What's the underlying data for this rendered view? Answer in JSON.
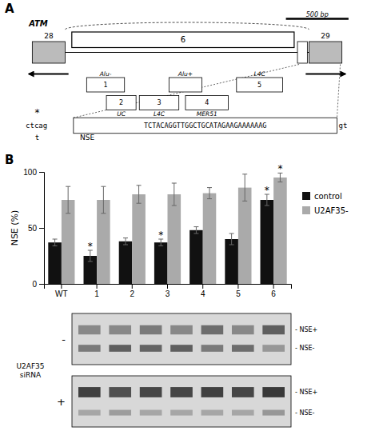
{
  "chart_data": [
    {
      "type": "diagram",
      "title": "A",
      "annotations": [
        "500 bp",
        "ATM",
        "28",
        "29",
        "6",
        "Alu-",
        "1",
        "UC",
        "2",
        "L4C",
        "3",
        "Alu+",
        "MER51",
        "4",
        "L4C",
        "5",
        "ctcag",
        "TCTACAGGTTGGCTGCATAGAAGAAAAAAG",
        "gt",
        "NSE",
        "*",
        "t"
      ]
    },
    {
      "type": "bar",
      "title": "B",
      "categories": [
        "WT",
        "1",
        "2",
        "3",
        "4",
        "5",
        "6"
      ],
      "series": [
        {
          "name": "control",
          "color": "#111111",
          "values": [
            37,
            25,
            38,
            37,
            48,
            40,
            75
          ],
          "errors": [
            3,
            5,
            3,
            3,
            3,
            5,
            5
          ]
        },
        {
          "name": "U2AF35-",
          "color": "#aaaaaa",
          "values": [
            75,
            75,
            80,
            80,
            81,
            86,
            95
          ],
          "errors": [
            12,
            12,
            8,
            10,
            5,
            12,
            4
          ]
        }
      ],
      "ylabel": "NSE (%)",
      "ylim": [
        0,
        100
      ],
      "yticks": [
        0,
        50,
        100
      ],
      "legend": "right",
      "grid": false,
      "annotations": [
        {
          "text": "*",
          "series": 0,
          "index": 1
        },
        {
          "text": "*",
          "series": 0,
          "index": 3
        },
        {
          "text": "*",
          "series": 0,
          "index": 6
        },
        {
          "text": "*",
          "series": 1,
          "index": 6
        }
      ]
    },
    {
      "type": "heatmap",
      "cells": [
        [
          0.55,
          0.55,
          0.6,
          0.55,
          0.65,
          0.55,
          0.7
        ],
        [
          0.6,
          0.7,
          0.68,
          0.7,
          0.6,
          0.65,
          0.5
        ],
        [
          0.8,
          0.75,
          0.78,
          0.78,
          0.8,
          0.78,
          0.82
        ],
        [
          0.45,
          0.48,
          0.45,
          0.45,
          0.45,
          0.45,
          0.5
        ]
      ],
      "annotations": [
        "- NSE+",
        "- NSE-",
        "- NSE+",
        "- NSE-",
        "-",
        "+",
        "U2AF35\nsiRNA"
      ]
    }
  ]
}
